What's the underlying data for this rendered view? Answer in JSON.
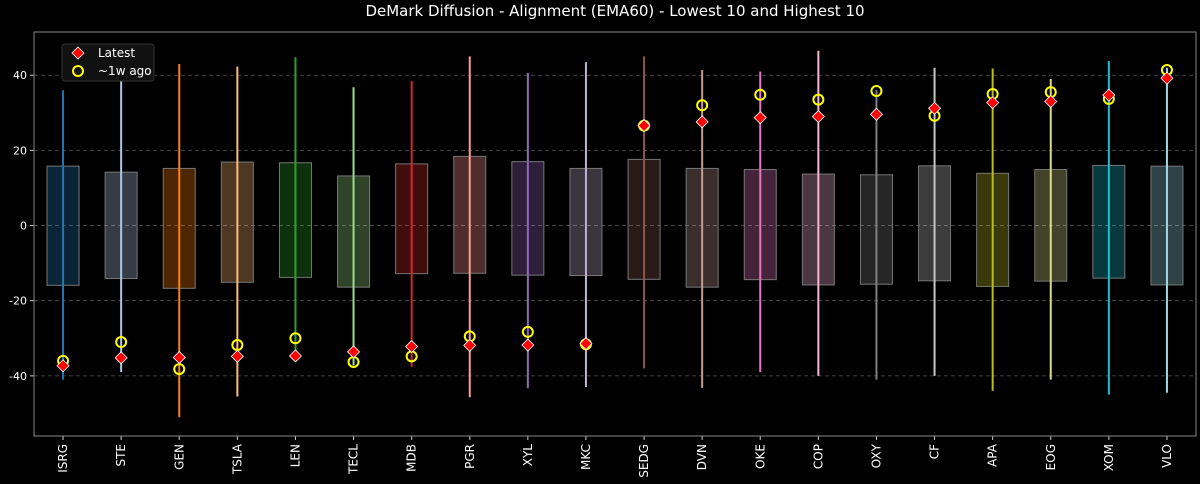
{
  "chart_data": {
    "type": "box",
    "title": "DeMark Diffusion - Alignment (EMA60) - Lowest 10 and Highest 10",
    "xlabel": "",
    "ylabel": "",
    "ylim": [
      -56,
      51.5
    ],
    "yticks": [
      -40,
      -20,
      0,
      20,
      40
    ],
    "grid": true,
    "legend_placement": "top-left",
    "legend": [
      {
        "label": "Latest",
        "marker": "red-diamond",
        "color": "#ff0000"
      },
      {
        "label": "~1w ago",
        "marker": "yellow-circle",
        "color": "#ffff00"
      }
    ],
    "categories": [
      "ISRG",
      "STE",
      "GEN",
      "TSLA",
      "LEN",
      "TECL",
      "MDB",
      "PGR",
      "XYL",
      "MKC",
      "SEDG",
      "DVN",
      "OKE",
      "COP",
      "OXY",
      "CF",
      "APA",
      "EOG",
      "XOM",
      "VLO"
    ],
    "colors": [
      "#1f77b4",
      "#aec7e8",
      "#ff7f0e",
      "#ffbb78",
      "#2ca02c",
      "#98df8a",
      "#d62728",
      "#ff9896",
      "#9467bd",
      "#c5b0d5",
      "#8c564b",
      "#c49c94",
      "#e377c2",
      "#f7b6d2",
      "#7f7f7f",
      "#c7c7c7",
      "#bcbd22",
      "#dbdb8d",
      "#17becf",
      "#9edae5"
    ],
    "whisker_low": [
      -41,
      -39,
      -51,
      -45.5,
      -36,
      -37.2,
      -37.6,
      -45.7,
      -43.3,
      -43,
      -38,
      -43.2,
      -39,
      -40,
      -41,
      -40,
      -44,
      -41,
      -45,
      -44.5
    ],
    "whisker_high": [
      36,
      47,
      43,
      42.3,
      44.8,
      36.8,
      38.4,
      45,
      40.6,
      43.5,
      45,
      41.4,
      41,
      46.5,
      36,
      42,
      41.8,
      39,
      43.8,
      42
    ],
    "q_low": [
      -15.9,
      -14.1,
      -16.7,
      -15.1,
      -13.8,
      -16.4,
      -12.8,
      -12.7,
      -13.2,
      -13.3,
      -14.3,
      -16.4,
      -14.4,
      -15.8,
      -15.6,
      -14.7,
      -16.2,
      -14.8,
      -14,
      -15.8
    ],
    "q_high": [
      15.8,
      14.2,
      15.2,
      16.9,
      16.7,
      13.2,
      16.4,
      18.4,
      17,
      15.2,
      17.6,
      15.2,
      14.9,
      13.7,
      13.5,
      15.9,
      13.9,
      14.9,
      16,
      15.8
    ],
    "series": [
      {
        "name": "Latest",
        "values": [
          -37.3,
          -35.2,
          -35.1,
          -34.8,
          -34.7,
          -33.6,
          -32.2,
          -31.9,
          -31.8,
          -31.4,
          26.6,
          27.6,
          28.7,
          29,
          29.6,
          31.2,
          32.7,
          33,
          34.7,
          39.2
        ]
      },
      {
        "name": "~1w ago",
        "values": [
          -36,
          -31,
          -38.2,
          -31.8,
          -30,
          -36.3,
          -34.8,
          -29.5,
          -28.3,
          -31.6,
          26.6,
          32,
          34.8,
          33.5,
          35.8,
          29.2,
          35,
          35.5,
          33.7,
          41.4
        ]
      }
    ]
  }
}
